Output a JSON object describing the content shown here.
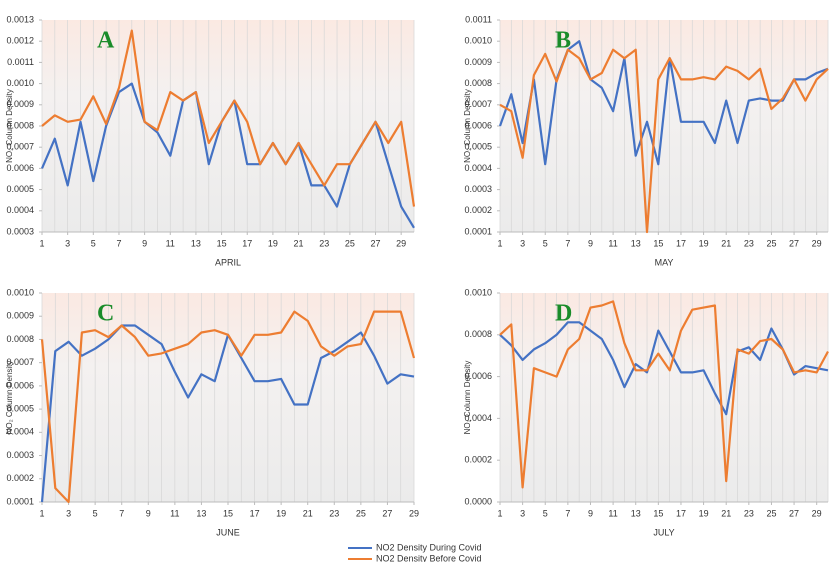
{
  "chart_data": [
    {
      "type": "line",
      "annotation": "A",
      "x_label": "APRIL",
      "y_label": "NO₂ Column Density",
      "x": [
        1,
        2,
        3,
        4,
        5,
        6,
        7,
        8,
        9,
        10,
        11,
        12,
        13,
        14,
        15,
        16,
        17,
        18,
        19,
        20,
        21,
        22,
        23,
        24,
        25,
        26,
        27,
        28,
        29,
        30
      ],
      "xlim": [
        1,
        30
      ],
      "xticks": [
        1,
        3,
        5,
        7,
        9,
        11,
        13,
        15,
        17,
        19,
        21,
        23,
        25,
        27,
        29
      ],
      "ylim": [
        0.0003,
        0.0013
      ],
      "yticks": [
        0.0003,
        0.0004,
        0.0005,
        0.0006,
        0.0007,
        0.0008,
        0.0009,
        {
          "value": 0.001,
          "label": "0.0010"
        },
        0.0011,
        0.0012,
        0.0013
      ],
      "series": [
        {
          "name": "NO2  Density During Covid",
          "color": "#4472c4",
          "values": [
            0.0006,
            0.00074,
            0.00052,
            0.00082,
            0.00054,
            0.0008,
            0.00096,
            0.001,
            0.00082,
            0.00077,
            0.00066,
            0.00092,
            0.00096,
            0.00062,
            0.00082,
            0.00092,
            0.00062,
            0.00062,
            0.00072,
            0.00062,
            0.00072,
            0.00052,
            0.00052,
            0.00042,
            0.00062,
            0.00072,
            0.00082,
            0.00062,
            0.00042,
            0.00032
          ]
        },
        {
          "name": "NO2 Density Before Covid",
          "color": "#ed7d31",
          "values": [
            0.0008,
            0.00085,
            0.00082,
            0.00083,
            0.00094,
            0.00081,
            0.00098,
            0.00125,
            0.00082,
            0.00078,
            0.00096,
            0.00092,
            0.00096,
            0.00072,
            0.00082,
            0.00092,
            0.00082,
            0.00062,
            0.00072,
            0.00062,
            0.00072,
            0.00062,
            0.00052,
            0.00062,
            0.00062,
            0.00072,
            0.00082,
            0.00072,
            0.00082,
            0.00042
          ]
        }
      ]
    },
    {
      "type": "line",
      "annotation": "B",
      "x_label": "MAY",
      "y_label": "NO₂ Column Density",
      "x": [
        1,
        2,
        3,
        4,
        5,
        6,
        7,
        8,
        9,
        10,
        11,
        12,
        13,
        14,
        15,
        16,
        17,
        18,
        19,
        20,
        21,
        22,
        23,
        24,
        25,
        26,
        27,
        28,
        29,
        30
      ],
      "xlim": [
        1,
        30
      ],
      "xticks": [
        1,
        3,
        5,
        7,
        9,
        11,
        13,
        15,
        17,
        19,
        21,
        23,
        25,
        27,
        29
      ],
      "ylim": [
        0.0001,
        0.0011
      ],
      "yticks": [
        0.0001,
        0.0002,
        0.0003,
        0.0004,
        0.0005,
        0.0006,
        0.0007,
        0.0008,
        0.0009,
        {
          "value": 0.001,
          "label": "0.0010"
        },
        0.0011
      ],
      "series": [
        {
          "color": "#4472c4",
          "values": [
            0.0006,
            0.00075,
            0.00052,
            0.00082,
            0.00042,
            0.00082,
            0.00096,
            0.001,
            0.00082,
            0.00078,
            0.00067,
            0.00092,
            0.00046,
            0.00062,
            0.00042,
            0.00092,
            0.00062,
            0.00062,
            0.00062,
            0.00052,
            0.00072,
            0.00052,
            0.00072,
            0.00073,
            0.00072,
            0.00072,
            0.00082,
            0.00082,
            0.00085,
            0.00087
          ]
        },
        {
          "color": "#ed7d31",
          "values": [
            0.0007,
            0.00067,
            0.00045,
            0.00084,
            0.00094,
            0.00081,
            0.00096,
            0.00092,
            0.00082,
            0.00085,
            0.00096,
            0.00092,
            0.00096,
            0.0001,
            0.00082,
            0.00092,
            0.00082,
            0.00082,
            0.00083,
            0.00082,
            0.00088,
            0.00086,
            0.00082,
            0.00087,
            0.00068,
            0.00073,
            0.00082,
            0.00072,
            0.00082,
            0.00087
          ]
        }
      ]
    },
    {
      "type": "line",
      "annotation": "C",
      "x_label": "JUNE",
      "y_label": "NO₂ Column Density",
      "x": [
        1,
        2,
        3,
        4,
        5,
        6,
        7,
        8,
        9,
        10,
        11,
        12,
        13,
        14,
        15,
        16,
        17,
        18,
        19,
        20,
        21,
        22,
        23,
        24,
        25,
        26,
        27,
        28,
        29
      ],
      "xlim": [
        1,
        29
      ],
      "xticks": [
        1,
        3,
        5,
        7,
        9,
        11,
        13,
        15,
        17,
        19,
        21,
        23,
        25,
        27,
        29
      ],
      "ylim": [
        0.0001,
        0.001
      ],
      "yticks": [
        0.0001,
        0.0002,
        0.0003,
        0.0004,
        0.0005,
        0.0006,
        0.0007,
        0.0008,
        0.0009,
        {
          "value": 0.001,
          "label": "0.0010"
        }
      ],
      "series": [
        {
          "color": "#4472c4",
          "values": [
            0.0001,
            0.00075,
            0.00079,
            0.00073,
            0.00076,
            0.0008,
            0.00086,
            0.00086,
            0.00082,
            0.00078,
            0.00066,
            0.00055,
            0.00065,
            0.00062,
            0.00082,
            0.00072,
            0.00062,
            0.00062,
            0.00063,
            0.00052,
            0.00052,
            0.00072,
            0.00075,
            0.00079,
            0.00083,
            0.00073,
            0.00061,
            0.00065,
            0.00064
          ]
        },
        {
          "color": "#ed7d31",
          "values": [
            0.0008,
            0.00016,
            0.0001,
            0.00083,
            0.00084,
            0.00081,
            0.00086,
            0.00081,
            0.00073,
            0.00074,
            0.00076,
            0.00078,
            0.00083,
            0.00084,
            0.00082,
            0.00073,
            0.00082,
            0.00082,
            0.00083,
            0.00092,
            0.00088,
            0.00077,
            0.00073,
            0.00077,
            0.00078,
            0.00092,
            0.00092,
            0.00092,
            0.00072
          ]
        }
      ]
    },
    {
      "type": "line",
      "annotation": "D",
      "x_label": "JULY",
      "y_label": "NO₂ Column Density",
      "x": [
        1,
        2,
        3,
        4,
        5,
        6,
        7,
        8,
        9,
        10,
        11,
        12,
        13,
        14,
        15,
        16,
        17,
        18,
        19,
        20,
        21,
        22,
        23,
        24,
        25,
        26,
        27,
        28,
        29,
        30
      ],
      "xlim": [
        1,
        30
      ],
      "xticks": [
        1,
        3,
        5,
        7,
        9,
        11,
        13,
        15,
        17,
        19,
        21,
        23,
        25,
        27,
        29
      ],
      "ylim": [
        0,
        0.001
      ],
      "yticks": [
        {
          "value": 0,
          "label": "0.0000"
        },
        0.0002,
        0.0004,
        0.0006,
        0.0008,
        {
          "value": 0.001,
          "label": "0.0010"
        }
      ],
      "series": [
        {
          "color": "#4472c4",
          "values": [
            0.0008,
            0.00075,
            0.00068,
            0.00073,
            0.00076,
            0.0008,
            0.00086,
            0.00086,
            0.00082,
            0.00078,
            0.00068,
            0.00055,
            0.00066,
            0.00062,
            0.00082,
            0.00072,
            0.00062,
            0.00062,
            0.00063,
            0.00052,
            0.00042,
            0.00072,
            0.00074,
            0.00068,
            0.00083,
            0.00073,
            0.00061,
            0.00065,
            0.00064,
            0.00063
          ]
        },
        {
          "color": "#ed7d31",
          "values": [
            0.0008,
            0.00085,
            7e-05,
            0.00064,
            0.00062,
            0.0006,
            0.00073,
            0.00078,
            0.00093,
            0.00094,
            0.00096,
            0.00076,
            0.00063,
            0.00063,
            0.00071,
            0.00063,
            0.00082,
            0.00092,
            0.00093,
            0.00094,
            0.0001,
            0.00073,
            0.00071,
            0.00077,
            0.00078,
            0.00073,
            0.00062,
            0.00063,
            0.00062,
            0.00072
          ]
        }
      ]
    }
  ]
}
